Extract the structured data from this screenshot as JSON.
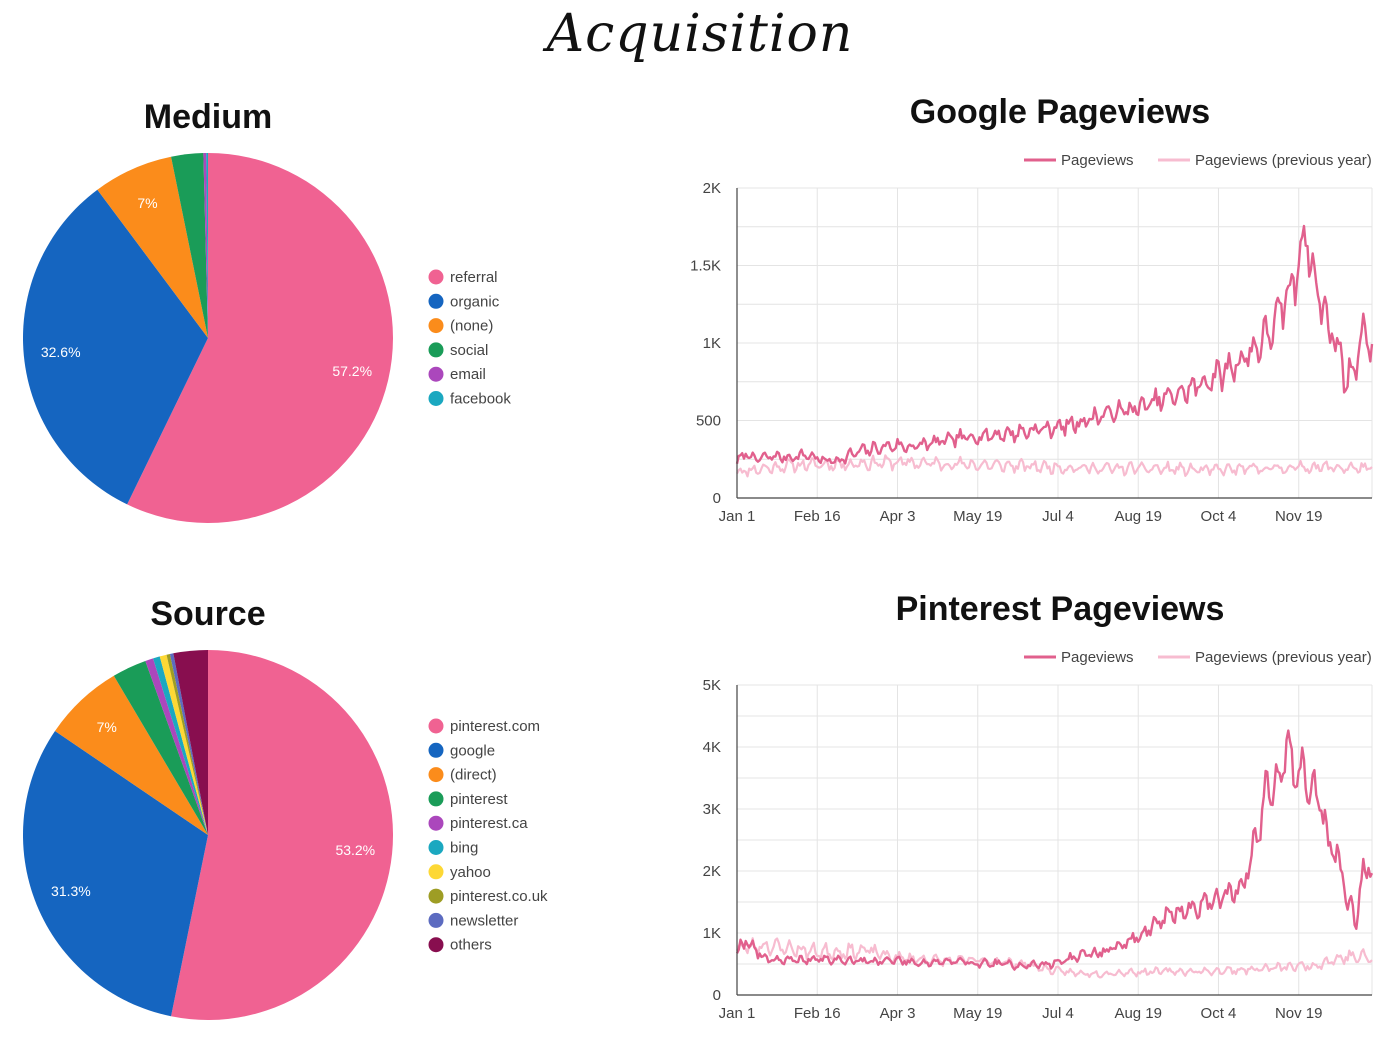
{
  "page": {
    "title": "Acquisition"
  },
  "colors": {
    "pink": "#f06292",
    "blue": "#1565c0",
    "orange": "#fb8c1b",
    "green": "#1a9c58",
    "purple": "#ab47bc",
    "teal": "#1ba8c0",
    "yellow": "#fdd835",
    "olive": "#9e9d24",
    "indigo": "#5c6bc0",
    "maroon": "#880e4f",
    "line_current": "#e1608d",
    "line_previous": "#f7bcd0",
    "grid": "#e4e4e4",
    "axis": "#444444"
  },
  "chart_data": [
    {
      "id": "medium",
      "type": "pie",
      "title": "Medium",
      "slices": [
        {
          "label": "referral",
          "value": 57.2,
          "color": "#f06292",
          "display": "57.2%"
        },
        {
          "label": "organic",
          "value": 32.6,
          "color": "#1565c0",
          "display": "32.6%"
        },
        {
          "label": "(none)",
          "value": 7.0,
          "color": "#fb8c1b",
          "display": "7%"
        },
        {
          "label": "social",
          "value": 2.8,
          "color": "#1a9c58",
          "display": ""
        },
        {
          "label": "email",
          "value": 0.25,
          "color": "#ab47bc",
          "display": ""
        },
        {
          "label": "facebook",
          "value": 0.15,
          "color": "#1ba8c0",
          "display": ""
        }
      ]
    },
    {
      "id": "source",
      "type": "pie",
      "title": "Source",
      "slices": [
        {
          "label": "pinterest.com",
          "value": 53.2,
          "color": "#f06292",
          "display": "53.2%"
        },
        {
          "label": "google",
          "value": 31.3,
          "color": "#1565c0",
          "display": "31.3%"
        },
        {
          "label": "(direct)",
          "value": 7.0,
          "color": "#fb8c1b",
          "display": "7%"
        },
        {
          "label": "pinterest",
          "value": 3.0,
          "color": "#1a9c58",
          "display": ""
        },
        {
          "label": "pinterest.ca",
          "value": 0.7,
          "color": "#ab47bc",
          "display": ""
        },
        {
          "label": "bing",
          "value": 0.6,
          "color": "#1ba8c0",
          "display": ""
        },
        {
          "label": "yahoo",
          "value": 0.6,
          "color": "#fdd835",
          "display": ""
        },
        {
          "label": "pinterest.co.uk",
          "value": 0.3,
          "color": "#9e9d24",
          "display": ""
        },
        {
          "label": "newsletter",
          "value": 0.3,
          "color": "#5c6bc0",
          "display": ""
        },
        {
          "label": "others",
          "value": 3.0,
          "color": "#880e4f",
          "display": ""
        }
      ]
    },
    {
      "id": "google",
      "type": "line",
      "title": "Google Pageviews",
      "legend": [
        "Pageviews",
        "Pageviews (previous year)"
      ],
      "ylim": [
        0,
        2000
      ],
      "yticks": [
        0,
        500,
        1000,
        1500,
        2000
      ],
      "ytick_labels": [
        "0",
        "500",
        "1K",
        "1.5K",
        "2K"
      ],
      "x_range_days": [
        0,
        364
      ],
      "xticks": [
        0,
        46,
        92,
        138,
        184,
        230,
        276,
        322
      ],
      "xtick_labels": [
        "Jan 1",
        "Feb 16",
        "Apr 3",
        "May 19",
        "Jul 4",
        "Aug 19",
        "Oct 4",
        "Nov 19"
      ],
      "series": [
        {
          "name": "Pageviews",
          "color": "#e1608d",
          "anchors_x": [
            0,
            5,
            10,
            20,
            30,
            40,
            50,
            60,
            70,
            80,
            90,
            100,
            110,
            120,
            130,
            140,
            150,
            160,
            170,
            180,
            190,
            200,
            210,
            220,
            230,
            240,
            250,
            260,
            270,
            280,
            290,
            300,
            310,
            315,
            320,
            325,
            330,
            335,
            340,
            345,
            350,
            355,
            360,
            364
          ],
          "anchors_y": [
            230,
            290,
            250,
            270,
            260,
            280,
            240,
            250,
            300,
            320,
            340,
            330,
            350,
            370,
            390,
            400,
            410,
            420,
            440,
            450,
            470,
            500,
            540,
            560,
            580,
            620,
            660,
            700,
            760,
            820,
            900,
            1000,
            1150,
            1300,
            1400,
            1750,
            1450,
            1250,
            1100,
            950,
            750,
            900,
            1100,
            950
          ],
          "amplitude": [
            30,
            30,
            30,
            35,
            35,
            35,
            35,
            40,
            45,
            45,
            45,
            50,
            50,
            50,
            50,
            50,
            50,
            55,
            55,
            55,
            60,
            60,
            65,
            65,
            70,
            75,
            80,
            85,
            95,
            105,
            110,
            120,
            140,
            150,
            160,
            100,
            160,
            150,
            140,
            140,
            120,
            120,
            110,
            100
          ],
          "seed": 7
        },
        {
          "name": "Pageviews (previous year)",
          "color": "#f7bcd0",
          "anchors_x": [
            0,
            30,
            60,
            90,
            120,
            150,
            180,
            210,
            240,
            270,
            300,
            330,
            364
          ],
          "anchors_y": [
            170,
            210,
            220,
            230,
            220,
            210,
            200,
            190,
            190,
            180,
            190,
            200,
            190
          ],
          "amplitude": [
            40,
            40,
            45,
            45,
            45,
            40,
            40,
            40,
            40,
            35,
            40,
            40,
            40
          ],
          "seed": 11
        }
      ]
    },
    {
      "id": "pinterest",
      "type": "line",
      "title": "Pinterest Pageviews",
      "legend": [
        "Pageviews",
        "Pageviews (previous year)"
      ],
      "ylim": [
        0,
        5000
      ],
      "yticks": [
        0,
        1000,
        2000,
        3000,
        4000,
        5000
      ],
      "ytick_labels": [
        "0",
        "1K",
        "2K",
        "3K",
        "4K",
        "5K"
      ],
      "x_range_days": [
        0,
        364
      ],
      "xticks": [
        0,
        46,
        92,
        138,
        184,
        230,
        276,
        322
      ],
      "xtick_labels": [
        "Jan 1",
        "Feb 16",
        "Apr 3",
        "May 19",
        "Jul 4",
        "Aug 19",
        "Oct 4",
        "Nov 19"
      ],
      "series": [
        {
          "name": "Pageviews",
          "color": "#e1608d",
          "anchors_x": [
            0,
            5,
            15,
            30,
            45,
            60,
            75,
            90,
            105,
            120,
            135,
            150,
            165,
            180,
            195,
            210,
            220,
            230,
            240,
            250,
            260,
            270,
            280,
            290,
            295,
            300,
            305,
            310,
            315,
            320,
            325,
            330,
            335,
            340,
            345,
            350,
            355,
            360,
            364
          ],
          "anchors_y": [
            700,
            900,
            600,
            550,
            580,
            560,
            540,
            560,
            520,
            540,
            520,
            500,
            480,
            500,
            620,
            700,
            800,
            950,
            1150,
            1300,
            1400,
            1500,
            1600,
            1800,
            2200,
            2800,
            3600,
            3400,
            4000,
            3500,
            3800,
            3200,
            3000,
            2400,
            2200,
            1500,
            1200,
            2100,
            2000
          ],
          "amplitude": [
            90,
            150,
            80,
            70,
            70,
            70,
            70,
            70,
            70,
            70,
            70,
            70,
            70,
            70,
            80,
            90,
            100,
            120,
            150,
            170,
            180,
            190,
            200,
            200,
            260,
            400,
            500,
            500,
            400,
            500,
            450,
            450,
            400,
            350,
            320,
            260,
            260,
            350,
            300
          ],
          "seed": 19
        },
        {
          "name": "Pageviews (previous year)",
          "color": "#f7bcd0",
          "anchors_x": [
            0,
            15,
            30,
            45,
            60,
            75,
            90,
            105,
            120,
            135,
            150,
            165,
            180,
            195,
            210,
            240,
            270,
            300,
            330,
            350,
            364
          ],
          "anchors_y": [
            750,
            800,
            750,
            700,
            700,
            720,
            600,
            580,
            550,
            560,
            540,
            500,
            400,
            350,
            350,
            380,
            380,
            420,
            480,
            620,
            600
          ],
          "amplitude": [
            120,
            130,
            130,
            120,
            130,
            110,
            90,
            80,
            80,
            80,
            70,
            60,
            60,
            60,
            60,
            60,
            60,
            70,
            90,
            110,
            120
          ],
          "seed": 23
        }
      ]
    }
  ]
}
